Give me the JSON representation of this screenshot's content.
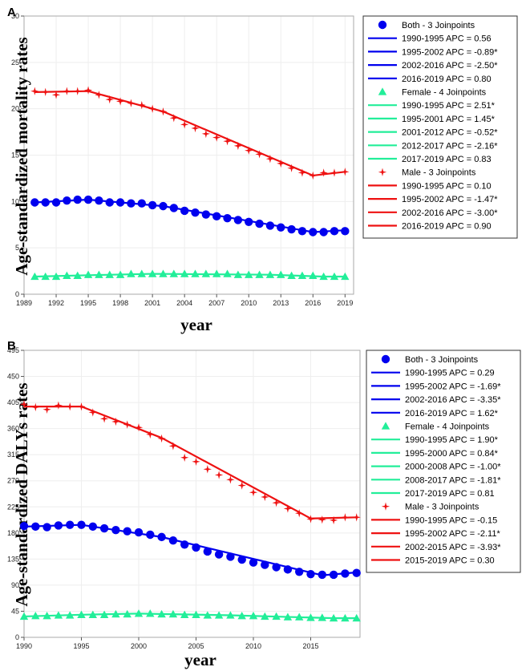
{
  "colors": {
    "both": "#0000ee",
    "female": "#22ee99",
    "male": "#ee1111",
    "axis": "#999999",
    "plot_border": "#aaaaaa"
  },
  "chart_data": [
    {
      "panel": "A",
      "type": "line",
      "title": "",
      "xlabel": "year",
      "ylabel": "Age-standardized mortality rates",
      "xlim": [
        1989,
        2019.8
      ],
      "ylim": [
        0,
        30
      ],
      "xticks": [
        1989,
        1992,
        1995,
        1998,
        2001,
        2004,
        2007,
        2010,
        2013,
        2016,
        2019
      ],
      "yticks": [
        0,
        5,
        10,
        15,
        20,
        25,
        30
      ],
      "x": [
        1990,
        1991,
        1992,
        1993,
        1994,
        1995,
        1996,
        1997,
        1998,
        1999,
        2000,
        2001,
        2002,
        2003,
        2004,
        2005,
        2006,
        2007,
        2008,
        2009,
        2010,
        2011,
        2012,
        2013,
        2014,
        2015,
        2016,
        2017,
        2018,
        2019
      ],
      "series": [
        {
          "key": "male",
          "name": "Male - 3 Joinpoints",
          "marker": "star",
          "values": [
            21.9,
            21.8,
            21.5,
            21.9,
            21.9,
            22.0,
            21.5,
            21.0,
            20.8,
            20.6,
            20.4,
            20.0,
            19.7,
            19.0,
            18.3,
            17.9,
            17.3,
            16.9,
            16.5,
            16.0,
            15.5,
            15.1,
            14.6,
            14.1,
            13.6,
            13.1,
            12.8,
            13.1,
            13.1,
            13.2
          ],
          "fit": [
            [
              1990,
              21.8
            ],
            [
              1995,
              21.9
            ],
            [
              2002,
              19.7
            ],
            [
              2016,
              12.8
            ],
            [
              2019,
              13.2
            ]
          ]
        },
        {
          "key": "both",
          "name": "Both - 3 Joinpoints",
          "marker": "circle",
          "values": [
            9.9,
            9.9,
            9.9,
            10.1,
            10.2,
            10.2,
            10.1,
            9.9,
            9.9,
            9.8,
            9.8,
            9.6,
            9.5,
            9.3,
            9.0,
            8.8,
            8.6,
            8.4,
            8.2,
            8.0,
            7.8,
            7.6,
            7.4,
            7.2,
            7.0,
            6.8,
            6.7,
            6.7,
            6.8,
            6.8
          ],
          "fit": [
            [
              1990,
              9.9
            ],
            [
              1995,
              10.2
            ],
            [
              2002,
              9.5
            ],
            [
              2016,
              6.7
            ],
            [
              2019,
              6.9
            ]
          ]
        },
        {
          "key": "female",
          "name": "Female - 4 Joinpoints",
          "marker": "triangle",
          "values": [
            1.9,
            1.9,
            1.9,
            2.0,
            2.0,
            2.1,
            2.1,
            2.1,
            2.1,
            2.2,
            2.2,
            2.2,
            2.2,
            2.2,
            2.2,
            2.2,
            2.2,
            2.2,
            2.2,
            2.1,
            2.1,
            2.1,
            2.1,
            2.1,
            2.0,
            2.0,
            2.0,
            1.9,
            1.9,
            1.9
          ],
          "fit": [
            [
              1990,
              1.9
            ],
            [
              1995,
              2.05
            ],
            [
              2001,
              2.2
            ],
            [
              2012,
              2.1
            ],
            [
              2017,
              1.9
            ],
            [
              2019,
              1.9
            ]
          ]
        }
      ],
      "legend": [
        {
          "type": "header",
          "key": "both",
          "marker": "circle",
          "text": "Both - 3 Joinpoints"
        },
        {
          "type": "line",
          "key": "both",
          "text": "1990-1995 APC =  0.56"
        },
        {
          "type": "line",
          "key": "both",
          "text": "1995-2002 APC = -0.89*"
        },
        {
          "type": "line",
          "key": "both",
          "text": "2002-2016 APC = -2.50*"
        },
        {
          "type": "line",
          "key": "both",
          "text": "2016-2019 APC =  0.80"
        },
        {
          "type": "header",
          "key": "female",
          "marker": "triangle",
          "text": "Female - 4 Joinpoints"
        },
        {
          "type": "line",
          "key": "female",
          "text": "1990-1995 APC =  2.51*"
        },
        {
          "type": "line",
          "key": "female",
          "text": "1995-2001 APC =  1.45*"
        },
        {
          "type": "line",
          "key": "female",
          "text": "2001-2012 APC = -0.52*"
        },
        {
          "type": "line",
          "key": "female",
          "text": "2012-2017 APC = -2.16*"
        },
        {
          "type": "line",
          "key": "female",
          "text": "2017-2019 APC =  0.83"
        },
        {
          "type": "header",
          "key": "male",
          "marker": "star",
          "text": "Male - 3 Joinpoints"
        },
        {
          "type": "line",
          "key": "male",
          "text": "1990-1995 APC =  0.10"
        },
        {
          "type": "line",
          "key": "male",
          "text": "1995-2002 APC = -1.47*"
        },
        {
          "type": "line",
          "key": "male",
          "text": "2002-2016 APC = -3.00*"
        },
        {
          "type": "line",
          "key": "male",
          "text": "2016-2019 APC =  0.90"
        }
      ]
    },
    {
      "panel": "B",
      "type": "line",
      "title": "",
      "xlabel": "year",
      "ylabel": "Age-standardized DALYs rates",
      "xlim": [
        1990,
        2019.3
      ],
      "ylim": [
        0,
        495
      ],
      "xticks": [
        1990,
        1995,
        2000,
        2005,
        2010,
        2015
      ],
      "yticks": [
        0,
        45,
        90,
        135,
        180,
        225,
        270,
        315,
        360,
        405,
        450,
        495
      ],
      "x": [
        1990,
        1991,
        1992,
        1993,
        1994,
        1995,
        1996,
        1997,
        1998,
        1999,
        2000,
        2001,
        2002,
        2003,
        2004,
        2005,
        2006,
        2007,
        2008,
        2009,
        2010,
        2011,
        2012,
        2013,
        2014,
        2015,
        2016,
        2017,
        2018,
        2019
      ],
      "series": [
        {
          "key": "male",
          "name": "Male - 3 Joinpoints",
          "marker": "star",
          "values": [
            402,
            397,
            393,
            400,
            398,
            398,
            388,
            377,
            372,
            367,
            362,
            350,
            343,
            330,
            310,
            303,
            290,
            280,
            272,
            262,
            250,
            242,
            232,
            222,
            214,
            204,
            203,
            202,
            207,
            207
          ],
          "fit": [
            [
              1990,
              398
            ],
            [
              1995,
              398
            ],
            [
              2002,
              344
            ],
            [
              2015,
              205
            ],
            [
              2019,
              207
            ]
          ]
        },
        {
          "key": "both",
          "name": "Both - 3 Joinpoints",
          "marker": "circle",
          "values": [
            192,
            191,
            190,
            193,
            194,
            194,
            191,
            188,
            185,
            183,
            181,
            177,
            173,
            167,
            160,
            155,
            148,
            143,
            139,
            134,
            129,
            125,
            121,
            117,
            113,
            109,
            108,
            108,
            110,
            111
          ],
          "fit": [
            [
              1990,
              191
            ],
            [
              1995,
              194
            ],
            [
              2002,
              173
            ],
            [
              2016,
              107
            ],
            [
              2019,
              112
            ]
          ]
        },
        {
          "key": "female",
          "name": "Female - 4 Joinpoints",
          "marker": "triangle",
          "values": [
            36,
            37,
            37,
            38,
            38,
            39,
            39,
            39,
            40,
            40,
            41,
            41,
            40,
            40,
            39,
            39,
            38,
            38,
            38,
            37,
            37,
            36,
            36,
            35,
            35,
            34,
            34,
            33,
            33,
            33
          ],
          "fit": [
            [
              1990,
              36
            ],
            [
              1995,
              39
            ],
            [
              2000,
              41
            ],
            [
              2008,
              38
            ],
            [
              2017,
              33
            ],
            [
              2019,
              33
            ]
          ]
        }
      ],
      "legend": [
        {
          "type": "header",
          "key": "both",
          "marker": "circle",
          "text": "Both - 3 Joinpoints"
        },
        {
          "type": "line",
          "key": "both",
          "text": "1990-1995 APC =  0.29"
        },
        {
          "type": "line",
          "key": "both",
          "text": "1995-2002 APC = -1.69*"
        },
        {
          "type": "line",
          "key": "both",
          "text": "2002-2016 APC = -3.35*"
        },
        {
          "type": "line",
          "key": "both",
          "text": "2016-2019 APC =  1.62*"
        },
        {
          "type": "header",
          "key": "female",
          "marker": "triangle",
          "text": "Female - 4 Joinpoints"
        },
        {
          "type": "line",
          "key": "female",
          "text": "1990-1995 APC =  1.90*"
        },
        {
          "type": "line",
          "key": "female",
          "text": "1995-2000 APC =  0.84*"
        },
        {
          "type": "line",
          "key": "female",
          "text": "2000-2008 APC = -1.00*"
        },
        {
          "type": "line",
          "key": "female",
          "text": "2008-2017 APC = -1.81*"
        },
        {
          "type": "line",
          "key": "female",
          "text": "2017-2019 APC =  0.81"
        },
        {
          "type": "header",
          "key": "male",
          "marker": "star",
          "text": "Male - 3 Joinpoints"
        },
        {
          "type": "line",
          "key": "male",
          "text": "1990-1995 APC = -0.15"
        },
        {
          "type": "line",
          "key": "male",
          "text": "1995-2002 APC = -2.11*"
        },
        {
          "type": "line",
          "key": "male",
          "text": "2002-2015 APC = -3.93*"
        },
        {
          "type": "line",
          "key": "male",
          "text": "2015-2019 APC =  0.30"
        }
      ]
    }
  ]
}
